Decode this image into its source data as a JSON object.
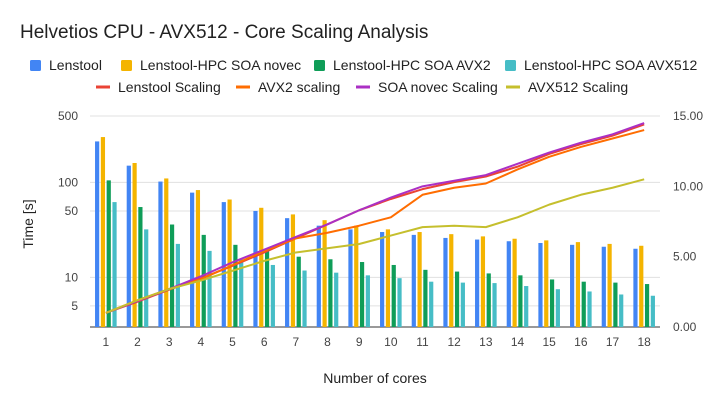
{
  "chart_data": {
    "type": "bar+line",
    "title": "Helvetios CPU - AVX512 - Core Scaling Analysis",
    "xlabel": "Number of cores",
    "ylabel": "Time [s]",
    "y_left": {
      "scale": "log",
      "range": [
        3,
        500
      ],
      "ticks": [
        5,
        10,
        50,
        100,
        500
      ]
    },
    "y_right": {
      "scale": "linear",
      "range": [
        0,
        15
      ],
      "ticks": [
        "0.00",
        "5.00",
        "10.00",
        "15.00"
      ]
    },
    "categories": [
      "1",
      "2",
      "3",
      "4",
      "5",
      "6",
      "7",
      "8",
      "9",
      "10",
      "11",
      "12",
      "13",
      "14",
      "15",
      "16",
      "17",
      "18"
    ],
    "bar_series": [
      {
        "name": "Lenstool",
        "color": "#4285F4",
        "values": [
          270,
          150,
          102,
          78,
          62,
          50,
          42,
          35,
          32,
          30,
          28,
          26,
          25,
          24,
          23,
          22,
          21,
          20
        ]
      },
      {
        "name": "Lenstool-HPC SOA novec",
        "color": "#F4B400",
        "values": [
          300,
          160,
          110,
          83,
          66,
          54,
          46,
          40,
          35,
          32,
          30,
          28.5,
          27,
          25.5,
          24.5,
          23.5,
          22.5,
          21.5
        ]
      },
      {
        "name": "Lenstool-HPC SOA AVX2",
        "color": "#0F9D58",
        "values": [
          105,
          55,
          36,
          28,
          22,
          19,
          16.5,
          15.5,
          14.5,
          13.5,
          12,
          11.5,
          11,
          10.5,
          9.5,
          9,
          8.8,
          8.5
        ]
      },
      {
        "name": "Lenstool-HPC SOA AVX512",
        "color": "#46BDC6",
        "values": [
          62,
          32,
          22.5,
          19,
          15.5,
          13.5,
          11.8,
          11.2,
          10.5,
          9.8,
          9,
          8.8,
          8.7,
          8.1,
          7.5,
          7.1,
          6.6,
          6.4
        ]
      }
    ],
    "line_series": [
      {
        "name": "Lenstool Scaling",
        "color": "#EA4335",
        "values": [
          1,
          1.8,
          2.65,
          3.45,
          4.35,
          5.3,
          6.3,
          7.3,
          8.3,
          9.1,
          9.8,
          10.3,
          10.7,
          11.4,
          12.3,
          13,
          13.6,
          14.4
        ]
      },
      {
        "name": "AVX2 scaling",
        "color": "#FF6D01",
        "values": [
          1,
          1.9,
          2.7,
          3.4,
          4.4,
          5.4,
          6.3,
          6.7,
          7.2,
          7.8,
          9.4,
          9.9,
          10.2,
          11.2,
          12.1,
          12.8,
          13.4,
          14
        ]
      },
      {
        "name": "SOA novec Scaling",
        "color": "#AB30C4",
        "values": [
          1,
          1.85,
          2.7,
          3.6,
          4.6,
          5.5,
          6.4,
          7.3,
          8.3,
          9.2,
          10,
          10.4,
          10.8,
          11.6,
          12.4,
          13.1,
          13.7,
          14.5
        ]
      },
      {
        "name": "AVX512 Scaling",
        "color": "#C5BF2D",
        "values": [
          1,
          1.9,
          2.7,
          3.3,
          4,
          4.7,
          5.3,
          5.6,
          5.9,
          6.5,
          7.1,
          7.2,
          7.1,
          7.8,
          8.7,
          9.4,
          9.9,
          10.5
        ]
      }
    ],
    "legend_position": "top",
    "grid": "horizontal"
  }
}
